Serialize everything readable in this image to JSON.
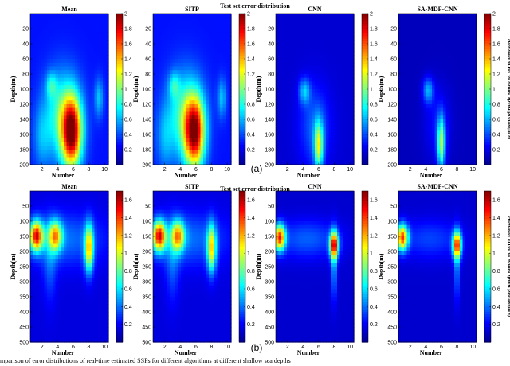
{
  "figure": {
    "caption": "mparison of error distributions of real-time estimated SSPs for different algorithms at different shallow sea depths",
    "cmap_colors": [
      "#00008f",
      "#0000ff",
      "#007fff",
      "#00ffff",
      "#7fff7f",
      "#ffff00",
      "#ff7f00",
      "#ff0000",
      "#7f0000"
    ]
  },
  "chart_data": [
    {
      "label": "(a)",
      "type": "heatmap",
      "suptitle": "Test set error distribution",
      "colorbar_label": "Absolute error of sound speed profile(m/s)",
      "clim": [
        0,
        2
      ],
      "colorbar_ticks": [
        "0.2",
        "0.4",
        "0.6",
        "0.8",
        "1",
        "1.2",
        "1.4",
        "1.6",
        "1.8",
        "2"
      ],
      "colorbar_tick_values": [
        0.2,
        0.4,
        0.6,
        0.8,
        1.0,
        1.2,
        1.4,
        1.6,
        1.8,
        2.0
      ],
      "xlabel": "Number",
      "ylabel": "Depth(m)",
      "xlim": [
        0.5,
        10.5
      ],
      "ylim": [
        0,
        200
      ],
      "x_ticks": [
        2,
        4,
        6,
        8,
        10
      ],
      "x_tick_labels": [
        "2",
        "4",
        "6",
        "8",
        "10"
      ],
      "y_ticks": [
        20,
        40,
        60,
        80,
        100,
        120,
        140,
        160,
        180,
        200
      ],
      "y_tick_labels": [
        "20",
        "40",
        "60",
        "80",
        "100",
        "120",
        "140",
        "160",
        "180",
        "200"
      ],
      "panels": [
        {
          "title": "Mean",
          "base": 0.28,
          "blobs": [
            {
              "x": 5.8,
              "y": 158,
              "sx": 0.9,
              "sy": 32,
              "a": 1.55
            },
            {
              "x": 4.6,
              "y": 135,
              "sx": 1.6,
              "sy": 40,
              "a": 0.6
            },
            {
              "x": 3.2,
              "y": 95,
              "sx": 0.5,
              "sy": 12,
              "a": 0.35
            },
            {
              "x": 9.3,
              "y": 112,
              "sx": 0.4,
              "sy": 18,
              "a": 0.35
            },
            {
              "x": 2.0,
              "y": 165,
              "sx": 0.8,
              "sy": 30,
              "a": 0.25
            }
          ]
        },
        {
          "title": "SITP",
          "base": 0.28,
          "blobs": [
            {
              "x": 5.8,
              "y": 158,
              "sx": 0.9,
              "sy": 32,
              "a": 1.5
            },
            {
              "x": 4.6,
              "y": 135,
              "sx": 1.6,
              "sy": 40,
              "a": 0.6
            },
            {
              "x": 3.2,
              "y": 95,
              "sx": 0.5,
              "sy": 12,
              "a": 0.35
            },
            {
              "x": 9.3,
              "y": 112,
              "sx": 0.4,
              "sy": 18,
              "a": 0.35
            },
            {
              "x": 2.0,
              "y": 165,
              "sx": 0.8,
              "sy": 30,
              "a": 0.25
            }
          ]
        },
        {
          "title": "CNN",
          "base": 0.15,
          "blobs": [
            {
              "x": 6.0,
              "y": 175,
              "sx": 0.4,
              "sy": 22,
              "a": 0.9
            },
            {
              "x": 4.2,
              "y": 103,
              "sx": 0.5,
              "sy": 12,
              "a": 0.45
            },
            {
              "x": 5.5,
              "y": 150,
              "sx": 1.4,
              "sy": 38,
              "a": 0.3
            }
          ]
        },
        {
          "title": "SA-MDF-CNN",
          "base": 0.1,
          "blobs": [
            {
              "x": 6.0,
              "y": 172,
              "sx": 0.35,
              "sy": 24,
              "a": 0.9
            },
            {
              "x": 4.3,
              "y": 102,
              "sx": 0.5,
              "sy": 12,
              "a": 0.45
            },
            {
              "x": 5.5,
              "y": 145,
              "sx": 1.2,
              "sy": 35,
              "a": 0.18
            }
          ]
        }
      ]
    },
    {
      "label": "(b)",
      "type": "heatmap",
      "suptitle": "Test set error distribution",
      "colorbar_label": "Absolute error of sound speed profile(m/s)",
      "clim": [
        0,
        1.7
      ],
      "colorbar_ticks": [
        "0.2",
        "0.4",
        "0.6",
        "0.8",
        "1",
        "1.2",
        "1.4",
        "1.6"
      ],
      "colorbar_tick_values": [
        0.2,
        0.4,
        0.6,
        0.8,
        1.0,
        1.2,
        1.4,
        1.6
      ],
      "xlabel": "Number",
      "ylabel": "Depth(m)",
      "xlim": [
        0.5,
        10.5
      ],
      "ylim": [
        0,
        500
      ],
      "x_ticks": [
        2,
        4,
        6,
        8,
        10
      ],
      "x_tick_labels": [
        "2",
        "4",
        "6",
        "8",
        "10"
      ],
      "y_ticks": [
        50,
        100,
        150,
        200,
        250,
        300,
        350,
        400,
        450,
        500
      ],
      "y_tick_labels": [
        "50",
        "100",
        "150",
        "200",
        "250",
        "300",
        "350",
        "400",
        "450",
        "500"
      ],
      "panels": [
        {
          "title": "Mean",
          "base": 0.15,
          "blobs": [
            {
              "x": 1.3,
              "y": 150,
              "sx": 0.6,
              "sy": 35,
              "a": 1.3
            },
            {
              "x": 3.7,
              "y": 150,
              "sx": 0.6,
              "sy": 35,
              "a": 0.9
            },
            {
              "x": 8.0,
              "y": 190,
              "sx": 0.4,
              "sy": 55,
              "a": 0.9
            },
            {
              "x": 5.0,
              "y": 160,
              "sx": 3.5,
              "sy": 60,
              "a": 0.25
            },
            {
              "x": 3.0,
              "y": 240,
              "sx": 0.6,
              "sy": 90,
              "a": 0.2
            }
          ]
        },
        {
          "title": "SITP",
          "base": 0.15,
          "blobs": [
            {
              "x": 1.3,
              "y": 150,
              "sx": 0.6,
              "sy": 35,
              "a": 1.3
            },
            {
              "x": 3.7,
              "y": 150,
              "sx": 0.6,
              "sy": 35,
              "a": 0.9
            },
            {
              "x": 8.0,
              "y": 190,
              "sx": 0.4,
              "sy": 55,
              "a": 0.9
            },
            {
              "x": 5.0,
              "y": 160,
              "sx": 3.5,
              "sy": 60,
              "a": 0.25
            },
            {
              "x": 3.0,
              "y": 240,
              "sx": 0.6,
              "sy": 90,
              "a": 0.2
            }
          ]
        },
        {
          "title": "CNN",
          "base": 0.12,
          "blobs": [
            {
              "x": 1.0,
              "y": 155,
              "sx": 0.5,
              "sy": 30,
              "a": 1.25
            },
            {
              "x": 8.0,
              "y": 180,
              "sx": 0.4,
              "sy": 30,
              "a": 1.2
            },
            {
              "x": 8.0,
              "y": 250,
              "sx": 0.25,
              "sy": 80,
              "a": 0.35
            },
            {
              "x": 4.5,
              "y": 160,
              "sx": 3.0,
              "sy": 45,
              "a": 0.25
            }
          ]
        },
        {
          "title": "SA-MDF-CNN",
          "base": 0.12,
          "blobs": [
            {
              "x": 1.0,
              "y": 155,
              "sx": 0.5,
              "sy": 30,
              "a": 1.2
            },
            {
              "x": 8.0,
              "y": 180,
              "sx": 0.4,
              "sy": 30,
              "a": 1.1
            },
            {
              "x": 8.0,
              "y": 250,
              "sx": 0.25,
              "sy": 80,
              "a": 0.3
            },
            {
              "x": 4.5,
              "y": 160,
              "sx": 3.0,
              "sy": 45,
              "a": 0.2
            }
          ]
        }
      ]
    }
  ]
}
